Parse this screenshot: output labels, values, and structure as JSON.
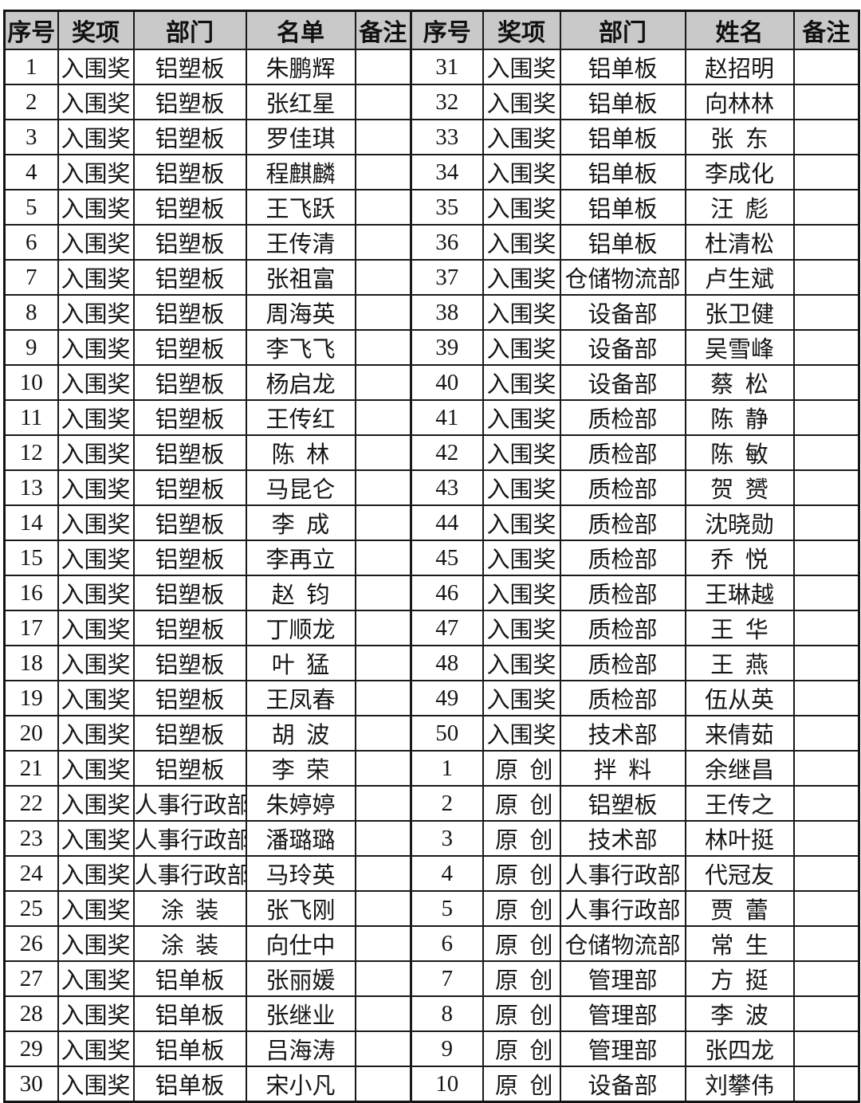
{
  "colors": {
    "header_background": "#c9c9c9",
    "border": "#1a1a1a",
    "text": "#161616",
    "page_background": "#ffffff"
  },
  "table": {
    "headers": [
      "序号",
      "奖项",
      "部门",
      "名单",
      "备注",
      "序号",
      "奖项",
      "部门",
      "姓名",
      "备注"
    ],
    "rows": [
      [
        "1",
        "入围奖",
        "铝塑板",
        "朱鹏辉",
        "",
        "31",
        "入围奖",
        "铝单板",
        "赵招明",
        ""
      ],
      [
        "2",
        "入围奖",
        "铝塑板",
        "张红星",
        "",
        "32",
        "入围奖",
        "铝单板",
        "向林林",
        ""
      ],
      [
        "3",
        "入围奖",
        "铝塑板",
        "罗佳琪",
        "",
        "33",
        "入围奖",
        "铝单板",
        "张东",
        ""
      ],
      [
        "4",
        "入围奖",
        "铝塑板",
        "程麒麟",
        "",
        "34",
        "入围奖",
        "铝单板",
        "李成化",
        ""
      ],
      [
        "5",
        "入围奖",
        "铝塑板",
        "王飞跃",
        "",
        "35",
        "入围奖",
        "铝单板",
        "汪彪",
        ""
      ],
      [
        "6",
        "入围奖",
        "铝塑板",
        "王传清",
        "",
        "36",
        "入围奖",
        "铝单板",
        "杜清松",
        ""
      ],
      [
        "7",
        "入围奖",
        "铝塑板",
        "张祖富",
        "",
        "37",
        "入围奖",
        "仓储物流部",
        "卢生斌",
        ""
      ],
      [
        "8",
        "入围奖",
        "铝塑板",
        "周海英",
        "",
        "38",
        "入围奖",
        "设备部",
        "张卫健",
        ""
      ],
      [
        "9",
        "入围奖",
        "铝塑板",
        "李飞飞",
        "",
        "39",
        "入围奖",
        "设备部",
        "吴雪峰",
        ""
      ],
      [
        "10",
        "入围奖",
        "铝塑板",
        "杨启龙",
        "",
        "40",
        "入围奖",
        "设备部",
        "蔡松",
        ""
      ],
      [
        "11",
        "入围奖",
        "铝塑板",
        "王传红",
        "",
        "41",
        "入围奖",
        "质检部",
        "陈静",
        ""
      ],
      [
        "12",
        "入围奖",
        "铝塑板",
        "陈林",
        "",
        "42",
        "入围奖",
        "质检部",
        "陈敏",
        ""
      ],
      [
        "13",
        "入围奖",
        "铝塑板",
        "马昆仑",
        "",
        "43",
        "入围奖",
        "质检部",
        "贺赟",
        ""
      ],
      [
        "14",
        "入围奖",
        "铝塑板",
        "李成",
        "",
        "44",
        "入围奖",
        "质检部",
        "沈晓勋",
        ""
      ],
      [
        "15",
        "入围奖",
        "铝塑板",
        "李再立",
        "",
        "45",
        "入围奖",
        "质检部",
        "乔悦",
        ""
      ],
      [
        "16",
        "入围奖",
        "铝塑板",
        "赵钧",
        "",
        "46",
        "入围奖",
        "质检部",
        "王琳越",
        ""
      ],
      [
        "17",
        "入围奖",
        "铝塑板",
        "丁顺龙",
        "",
        "47",
        "入围奖",
        "质检部",
        "王华",
        ""
      ],
      [
        "18",
        "入围奖",
        "铝塑板",
        "叶猛",
        "",
        "48",
        "入围奖",
        "质检部",
        "王燕",
        ""
      ],
      [
        "19",
        "入围奖",
        "铝塑板",
        "王凤春",
        "",
        "49",
        "入围奖",
        "质检部",
        "伍从英",
        ""
      ],
      [
        "20",
        "入围奖",
        "铝塑板",
        "胡波",
        "",
        "50",
        "入围奖",
        "技术部",
        "来倩茹",
        ""
      ],
      [
        "21",
        "入围奖",
        "铝塑板",
        "李荣",
        "",
        "1",
        "原创",
        "拌料",
        "余继昌",
        ""
      ],
      [
        "22",
        "入围奖",
        "人事行政部",
        "朱婷婷",
        "",
        "2",
        "原创",
        "铝塑板",
        "王传之",
        ""
      ],
      [
        "23",
        "入围奖",
        "人事行政部",
        "潘璐璐",
        "",
        "3",
        "原创",
        "技术部",
        "林叶挺",
        ""
      ],
      [
        "24",
        "入围奖",
        "人事行政部",
        "马玲英",
        "",
        "4",
        "原创",
        "人事行政部",
        "代冠友",
        ""
      ],
      [
        "25",
        "入围奖",
        "涂装",
        "张飞刚",
        "",
        "5",
        "原创",
        "人事行政部",
        "贾蕾",
        ""
      ],
      [
        "26",
        "入围奖",
        "涂装",
        "向仕中",
        "",
        "6",
        "原创",
        "仓储物流部",
        "常生",
        ""
      ],
      [
        "27",
        "入围奖",
        "铝单板",
        "张丽媛",
        "",
        "7",
        "原创",
        "管理部",
        "方挺",
        ""
      ],
      [
        "28",
        "入围奖",
        "铝单板",
        "张继业",
        "",
        "8",
        "原创",
        "管理部",
        "李波",
        ""
      ],
      [
        "29",
        "入围奖",
        "铝单板",
        "吕海涛",
        "",
        "9",
        "原创",
        "管理部",
        "张四龙",
        ""
      ],
      [
        "30",
        "入围奖",
        "铝单板",
        "宋小凡",
        "",
        "10",
        "原创",
        "设备部",
        "刘攀伟",
        ""
      ]
    ]
  }
}
